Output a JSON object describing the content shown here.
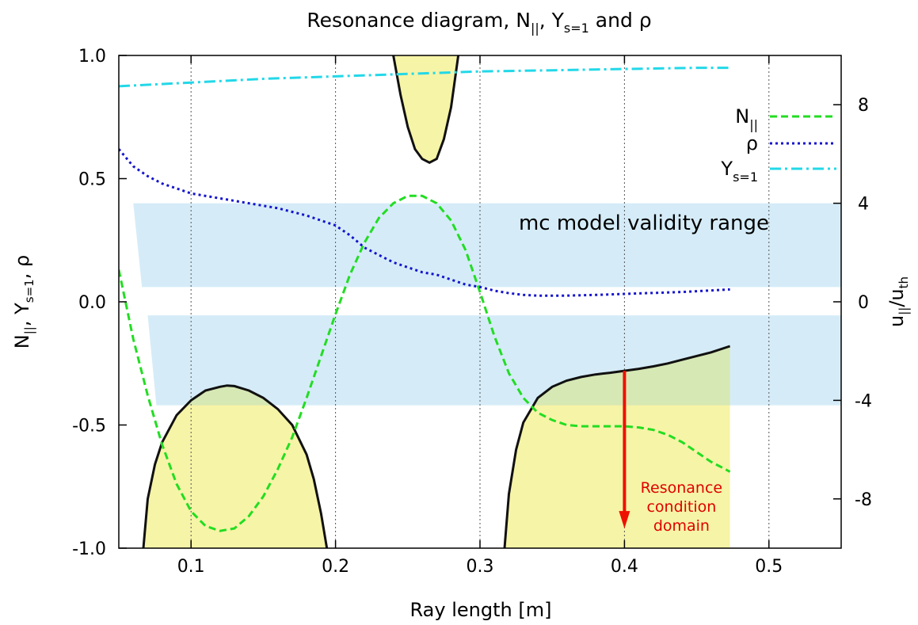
{
  "chart_data": {
    "type": "line",
    "title": "Resonance diagram, N||, Ys=1 and ρ",
    "title_parts": {
      "pre": "Resonance diagram, N",
      "n_sub": "||",
      "mid": ", Y",
      "y_sub": "s=1",
      "post": " and ρ"
    },
    "xlabel": "Ray length [m]",
    "ylabel": "N||, Ys=1, ρ",
    "ylabel_parts": {
      "n": "N",
      "n_sub": "||",
      "y": ", Y",
      "y_sub": "s=1",
      "rho": ", ρ"
    },
    "y2label": "u||/uth",
    "y2label_parts": {
      "u": "u",
      "u_sub": "||",
      "slash": "/u",
      "th_sub": "th"
    },
    "xlim": [
      0.05,
      0.55
    ],
    "ylim": [
      -1.0,
      1.0
    ],
    "y2lim": [
      -10,
      10
    ],
    "x_ticks": [
      0.1,
      0.2,
      0.3,
      0.4,
      0.5
    ],
    "x_tick_labels": [
      "0.1",
      "0.2",
      "0.3",
      "0.4",
      "0.5"
    ],
    "y_ticks": [
      -1.0,
      -0.5,
      0.0,
      0.5,
      1.0
    ],
    "y_tick_labels": [
      "-1.0",
      "-0.5",
      "0.0",
      "0.5",
      "1.0"
    ],
    "y2_ticks": [
      -8,
      -4,
      0,
      4,
      8
    ],
    "y2_tick_labels": [
      "-8",
      "-4",
      "0",
      "4",
      "8"
    ],
    "grid": "vertical dotted",
    "legend_position": "top-right",
    "series": [
      {
        "name": "N||",
        "legend_parts": {
          "main": "N",
          "sub": "||"
        },
        "color": "#22dd22",
        "style": "dashed",
        "x": [
          0.05,
          0.06,
          0.07,
          0.08,
          0.09,
          0.1,
          0.11,
          0.12,
          0.13,
          0.14,
          0.15,
          0.16,
          0.17,
          0.18,
          0.19,
          0.2,
          0.21,
          0.22,
          0.23,
          0.24,
          0.25,
          0.26,
          0.27,
          0.28,
          0.29,
          0.3,
          0.31,
          0.32,
          0.33,
          0.34,
          0.35,
          0.36,
          0.37,
          0.38,
          0.39,
          0.4,
          0.41,
          0.42,
          0.43,
          0.44,
          0.45,
          0.46,
          0.47,
          0.473
        ],
        "y": [
          0.13,
          -0.15,
          -0.38,
          -0.58,
          -0.74,
          -0.85,
          -0.91,
          -0.93,
          -0.92,
          -0.87,
          -0.79,
          -0.68,
          -0.55,
          -0.39,
          -0.22,
          -0.05,
          0.11,
          0.24,
          0.34,
          0.4,
          0.43,
          0.43,
          0.4,
          0.33,
          0.21,
          0.04,
          -0.14,
          -0.29,
          -0.39,
          -0.45,
          -0.48,
          -0.5,
          -0.505,
          -0.505,
          -0.505,
          -0.505,
          -0.51,
          -0.52,
          -0.54,
          -0.57,
          -0.61,
          -0.65,
          -0.68,
          -0.69
        ]
      },
      {
        "name": "ρ",
        "legend_parts": {
          "main": "ρ",
          "sub": ""
        },
        "color": "#1414cc",
        "style": "dotted",
        "x": [
          0.05,
          0.06,
          0.07,
          0.08,
          0.09,
          0.1,
          0.12,
          0.14,
          0.16,
          0.18,
          0.2,
          0.21,
          0.22,
          0.23,
          0.24,
          0.25,
          0.26,
          0.27,
          0.28,
          0.29,
          0.3,
          0.31,
          0.32,
          0.33,
          0.34,
          0.36,
          0.38,
          0.4,
          0.42,
          0.44,
          0.46,
          0.473
        ],
        "y": [
          0.62,
          0.55,
          0.51,
          0.48,
          0.46,
          0.44,
          0.42,
          0.4,
          0.38,
          0.35,
          0.31,
          0.27,
          0.22,
          0.19,
          0.16,
          0.14,
          0.12,
          0.11,
          0.09,
          0.07,
          0.06,
          0.045,
          0.035,
          0.028,
          0.025,
          0.025,
          0.028,
          0.032,
          0.036,
          0.04,
          0.046,
          0.05
        ]
      },
      {
        "name": "Ys=1",
        "legend_parts": {
          "main": "Y",
          "sub": "s=1"
        },
        "color": "#22d8e8",
        "style": "dash-dot",
        "x": [
          0.05,
          0.1,
          0.15,
          0.2,
          0.25,
          0.3,
          0.35,
          0.4,
          0.45,
          0.473
        ],
        "y": [
          0.875,
          0.89,
          0.905,
          0.915,
          0.925,
          0.935,
          0.94,
          0.945,
          0.95,
          0.95
        ]
      }
    ],
    "validity_bands_u": [
      {
        "x": [
          0.06,
          0.55
        ],
        "x_bottom_left": 0.066,
        "u_low": 0.6,
        "u_high": 4.0
      },
      {
        "x": [
          0.07,
          0.55
        ],
        "x_bottom_left": 0.076,
        "u_low": -4.2,
        "u_high": -0.55
      }
    ],
    "resonance_regions_u": [
      {
        "x": [
          0.067,
          0.07,
          0.075,
          0.08,
          0.09,
          0.1,
          0.11,
          0.12,
          0.125,
          0.13,
          0.14,
          0.15,
          0.16,
          0.17,
          0.18,
          0.185,
          0.19,
          0.194
        ],
        "u": [
          -10,
          -8.0,
          -6.6,
          -5.7,
          -4.6,
          -4.0,
          -3.6,
          -3.45,
          -3.4,
          -3.42,
          -3.6,
          -3.9,
          -4.35,
          -5.0,
          -6.2,
          -7.2,
          -8.6,
          -10
        ]
      },
      {
        "x": [
          0.317,
          0.32,
          0.325,
          0.33,
          0.34,
          0.35,
          0.36,
          0.37,
          0.38,
          0.39,
          0.4,
          0.41,
          0.42,
          0.43,
          0.44,
          0.45,
          0.46,
          0.473
        ],
        "u": [
          -10,
          -7.8,
          -6.0,
          -4.9,
          -3.9,
          -3.45,
          -3.2,
          -3.05,
          -2.95,
          -2.88,
          -2.8,
          -2.72,
          -2.62,
          -2.5,
          -2.35,
          -2.2,
          -2.05,
          -1.8
        ]
      },
      {
        "x": [
          0.24,
          0.245,
          0.25,
          0.255,
          0.26,
          0.265,
          0.27,
          0.275,
          0.28,
          0.285
        ],
        "u": [
          10,
          8.4,
          7.1,
          6.2,
          5.8,
          5.65,
          5.8,
          6.6,
          7.9,
          10
        ]
      }
    ],
    "band_label": "mc model validity range",
    "annotation": {
      "lines": [
        "Resonance",
        "condition",
        "domain"
      ],
      "x": 0.4,
      "u_from": -2.8,
      "u_to": -9.2,
      "color": "#ee1100"
    },
    "fill_colors": {
      "resonance": "#f6f4a6",
      "band": "#d5ecf8",
      "overlap": "#d6e8b4"
    }
  }
}
